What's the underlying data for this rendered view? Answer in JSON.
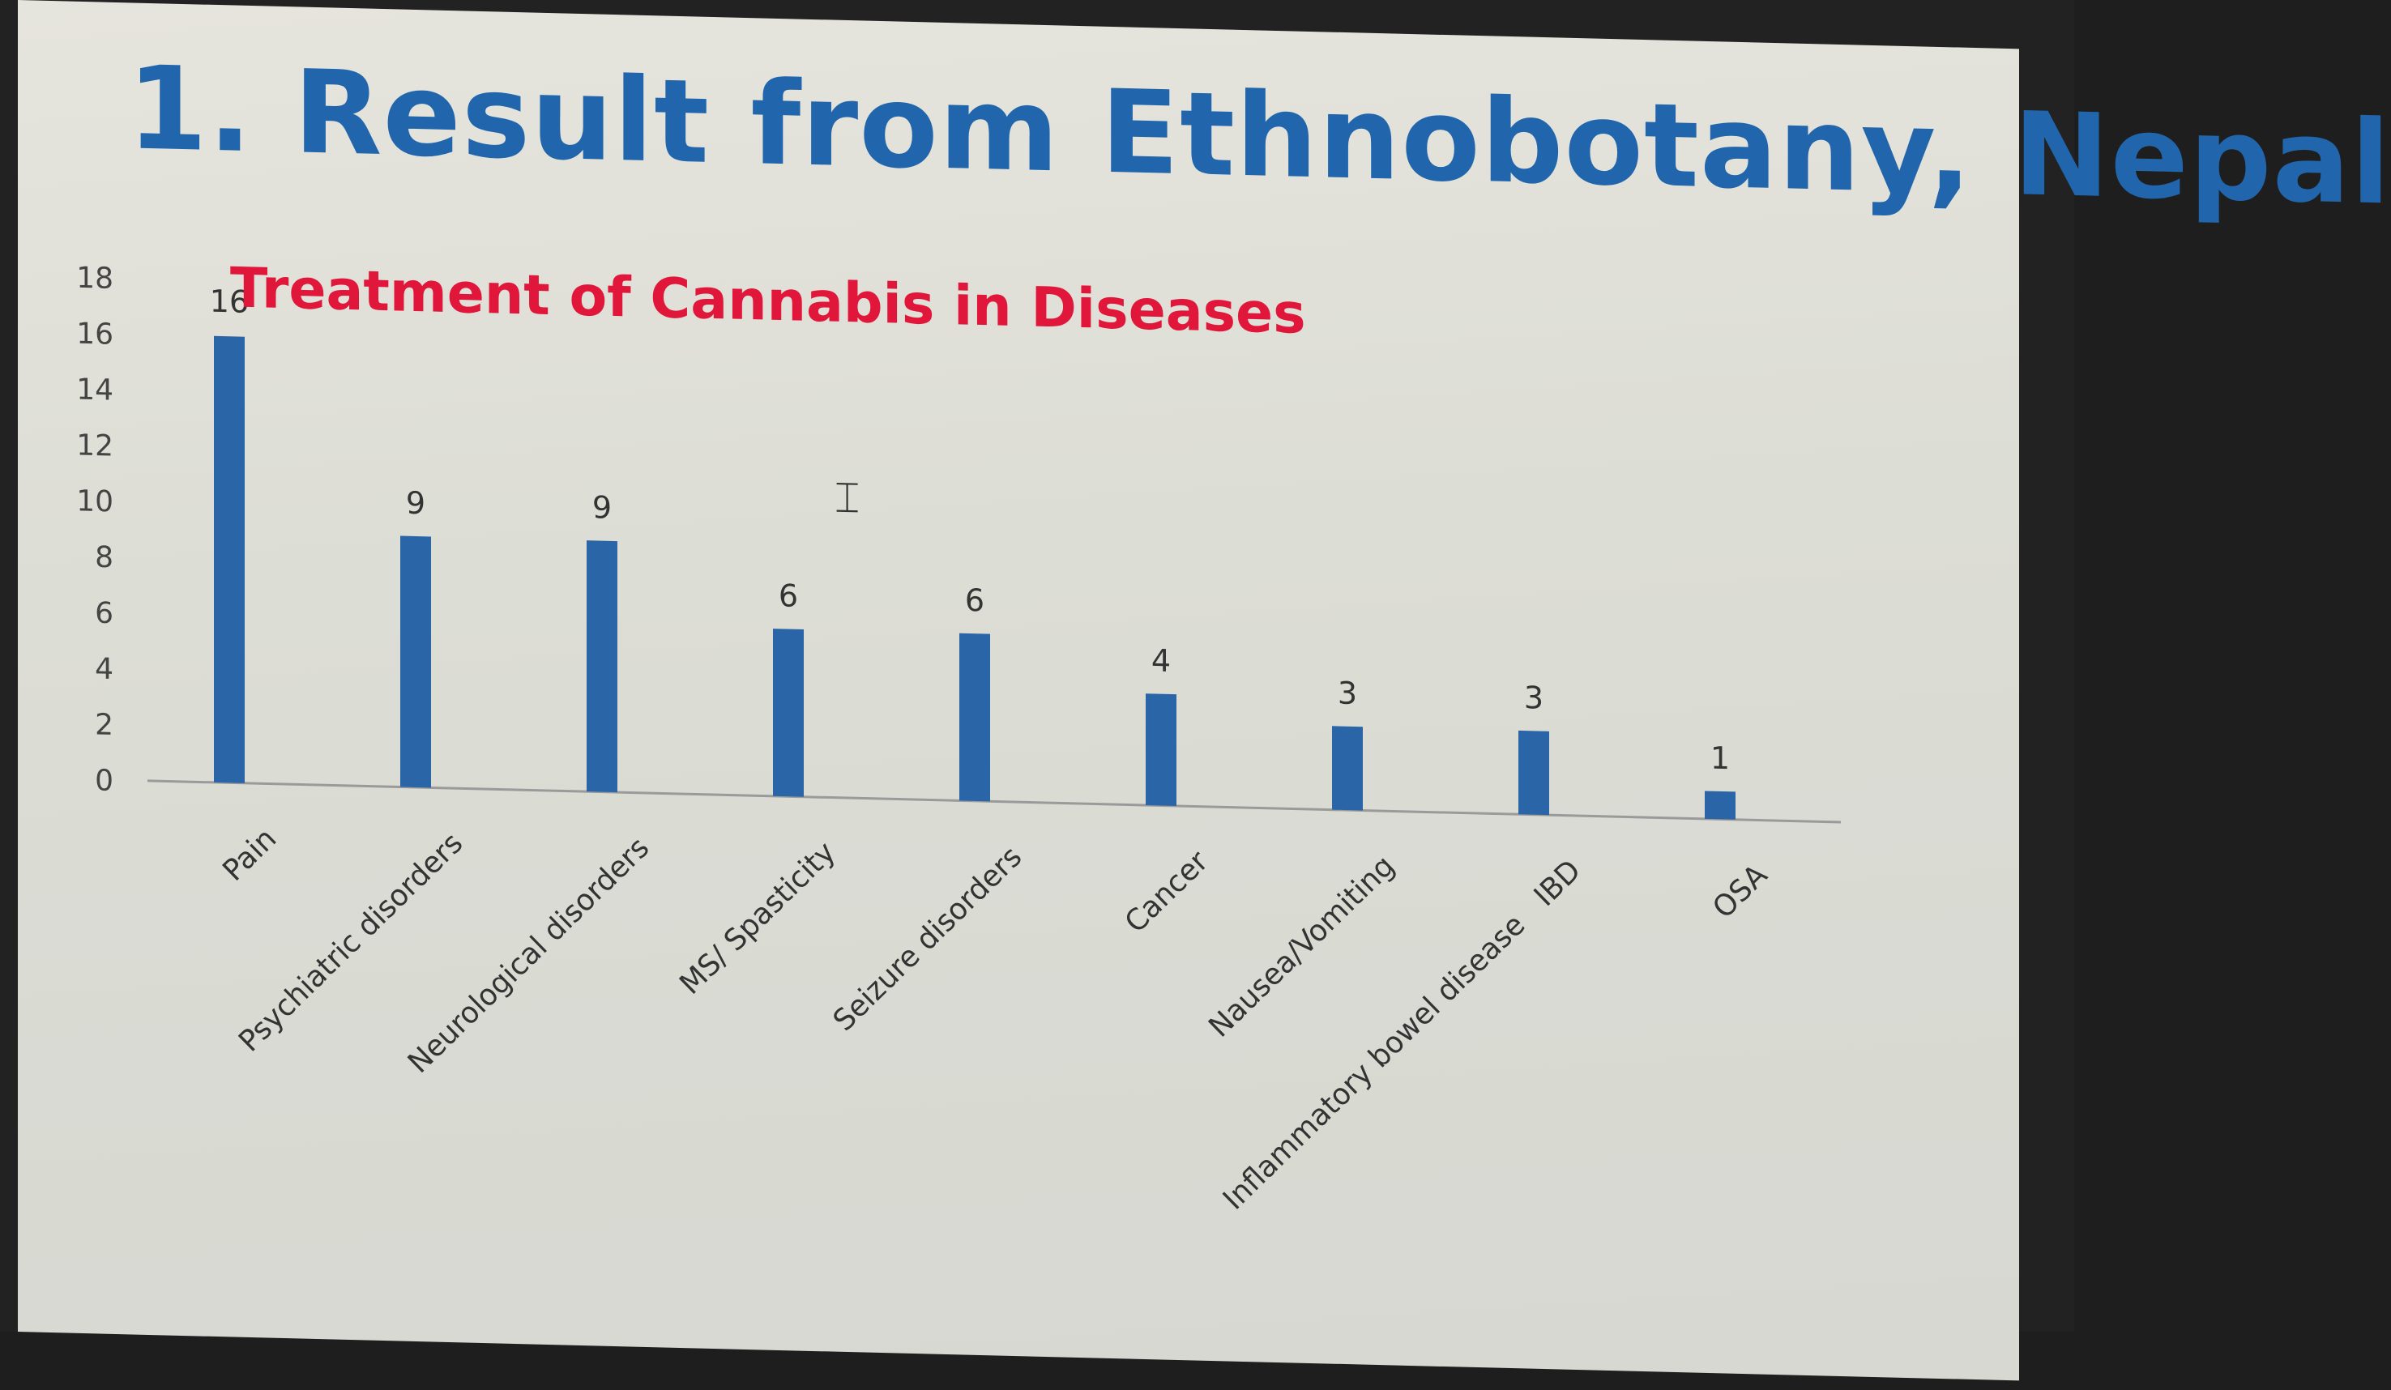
{
  "slide": {
    "title": "1. Result from Ethnobotany, Nepal"
  },
  "chart_data": {
    "type": "bar",
    "title": "Treatment of Cannabis in Diseases",
    "xlabel": "",
    "ylabel": "",
    "categories": [
      "Pain",
      "Psychiatric disorders",
      "Neurological disorders",
      "MS/ Spasticity",
      "Seizure disorders",
      "Cancer",
      "Nausea/Vomiting",
      "Inflammatory bowel disease   IBD",
      "OSA"
    ],
    "values": [
      16,
      9,
      9,
      6,
      6,
      4,
      3,
      3,
      1
    ],
    "ylim": [
      0,
      18
    ],
    "yticks": [
      0,
      2,
      4,
      6,
      8,
      10,
      12,
      14,
      16,
      18
    ],
    "grid": false,
    "legend": "none",
    "bar_color": "#2a65a8"
  },
  "colors": {
    "title": "#2166ac",
    "chart_title": "#e0173a"
  }
}
